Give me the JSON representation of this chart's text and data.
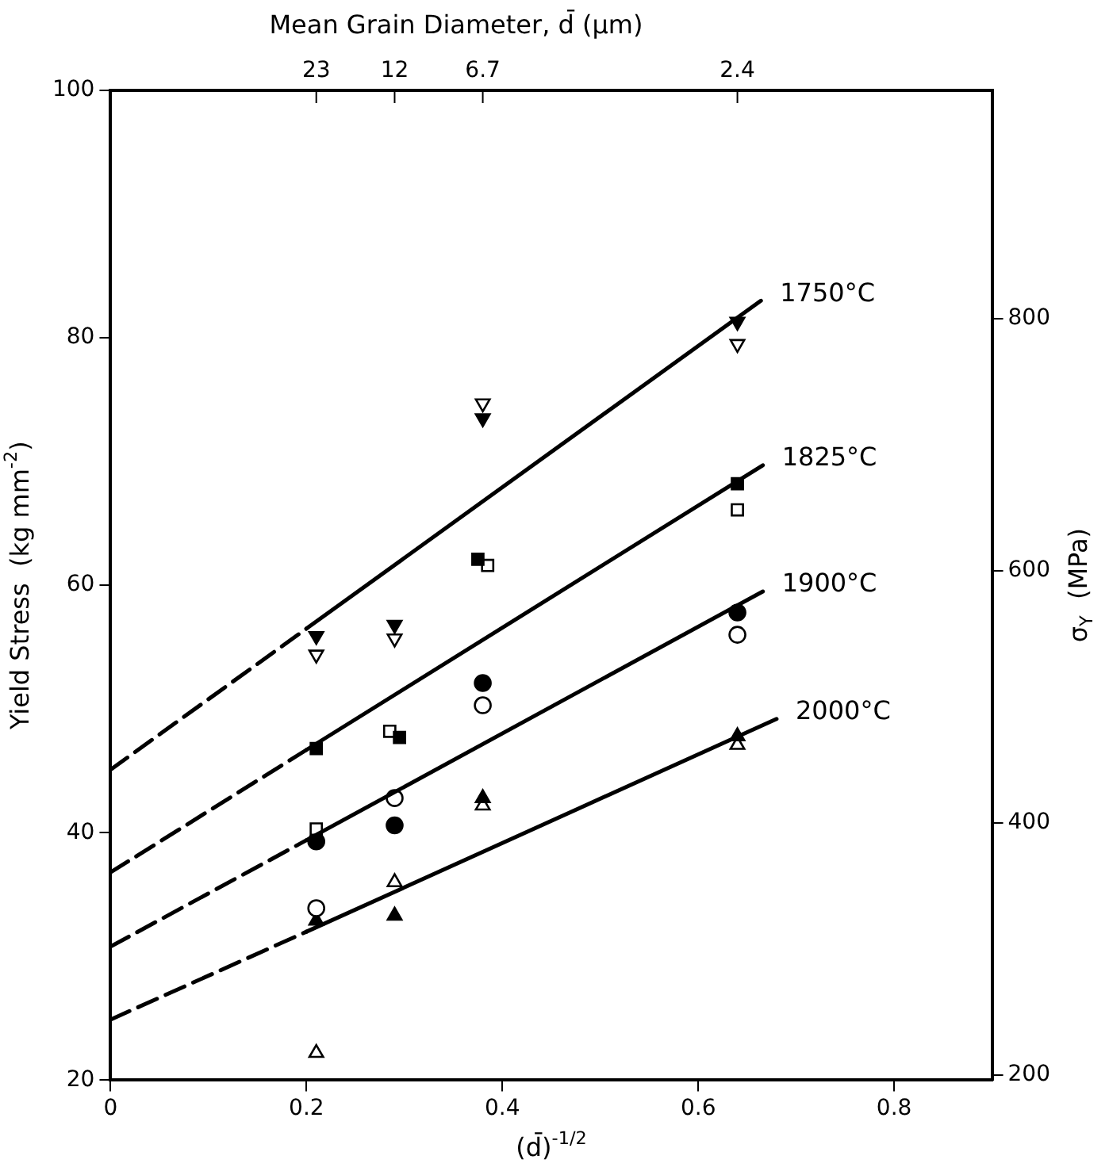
{
  "chart_data": {
    "type": "scatter",
    "xlabel": "(d̄)$^{-1/2}$",
    "ylabel": "Yield Stress  (kg mm$^{-2}$)",
    "y2label": "σ$_{Y}$  (MPa)",
    "x2label": "Mean Grain Diameter, d̄ (μm)",
    "xlim": [
      0,
      0.9
    ],
    "xticks": [
      0,
      0.2,
      0.4,
      0.6,
      0.8
    ],
    "ylim": [
      20,
      100
    ],
    "yticks": [
      20,
      40,
      60,
      80,
      100
    ],
    "y2lim": [
      196,
      981
    ],
    "y2ticks": [
      200,
      400,
      600,
      800
    ],
    "annotations": [
      {
        "text": "23",
        "x": 0.21
      },
      {
        "text": "12",
        "x": 0.29
      },
      {
        "text": "6.7",
        "x": 0.38
      },
      {
        "text": "2.4",
        "x": 0.64
      }
    ],
    "grid": false,
    "legend": false,
    "series": [
      {
        "type": "line",
        "name": "1750°C",
        "color": "#000000",
        "line_style": "solid",
        "marker": "none",
        "x": [
          0.2,
          0.664
        ],
        "values": [
          56.5,
          83.0
        ]
      },
      {
        "type": "line",
        "color": "#000000",
        "line_style": "dashed",
        "marker": "none",
        "x": [
          0,
          0.2
        ],
        "values": [
          45.1,
          56.5
        ]
      },
      {
        "type": "line",
        "name": "1825°C",
        "color": "#000000",
        "line_style": "solid",
        "marker": "none",
        "x": [
          0.2,
          0.666
        ],
        "values": [
          46.7,
          69.7
        ]
      },
      {
        "type": "line",
        "color": "#000000",
        "line_style": "dashed",
        "marker": "none",
        "x": [
          0,
          0.2
        ],
        "values": [
          36.8,
          46.7
        ]
      },
      {
        "type": "line",
        "name": "1900°C",
        "color": "#000000",
        "line_style": "solid",
        "marker": "none",
        "x": [
          0.2,
          0.666
        ],
        "values": [
          39.4,
          59.5
        ]
      },
      {
        "type": "line",
        "color": "#000000",
        "line_style": "dashed",
        "marker": "none",
        "x": [
          0,
          0.2
        ],
        "values": [
          30.8,
          39.4
        ]
      },
      {
        "type": "line",
        "name": "2000°C",
        "color": "#000000",
        "line_style": "solid",
        "marker": "none",
        "x": [
          0.2,
          0.68
        ],
        "values": [
          32.0,
          49.2
        ]
      },
      {
        "type": "line",
        "color": "#000000",
        "line_style": "dashed",
        "marker": "none",
        "x": [
          0,
          0.2
        ],
        "values": [
          24.9,
          32.0
        ]
      },
      {
        "type": "scatter",
        "marker": "triangle-down",
        "color": "#000000",
        "x": [
          0.21,
          0.29,
          0.38,
          0.64
        ],
        "values": [
          55.9,
          56.8,
          73.5,
          81.3
        ]
      },
      {
        "type": "scatter",
        "marker": "triangle-down",
        "color": "#ffffff",
        "x": [
          0.21,
          0.29,
          0.38,
          0.64
        ],
        "values": [
          54.4,
          55.7,
          74.7,
          79.5
        ]
      },
      {
        "type": "scatter",
        "marker": "square",
        "color": "#000000",
        "x": [
          0.21,
          0.295,
          0.375,
          0.64
        ],
        "values": [
          46.8,
          47.7,
          62.1,
          68.2
        ]
      },
      {
        "type": "scatter",
        "marker": "square",
        "color": "#ffffff",
        "x": [
          0.21,
          0.285,
          0.385,
          0.64
        ],
        "values": [
          40.3,
          48.2,
          61.6,
          66.1
        ]
      },
      {
        "type": "scatter",
        "marker": "circle",
        "color": "#000000",
        "x": [
          0.21,
          0.29,
          0.38,
          0.64
        ],
        "values": [
          39.3,
          40.6,
          52.1,
          57.8
        ]
      },
      {
        "type": "scatter",
        "marker": "circle",
        "color": "#ffffff",
        "x": [
          0.21,
          0.29,
          0.38,
          0.64
        ],
        "values": [
          33.9,
          42.8,
          50.3,
          56.0
        ]
      },
      {
        "type": "scatter",
        "marker": "triangle",
        "color": "#000000",
        "x": [
          0.21,
          0.29,
          0.38,
          0.64
        ],
        "values": [
          32.9,
          33.3,
          42.8,
          47.8
        ]
      },
      {
        "type": "scatter",
        "marker": "triangle",
        "color": "#ffffff",
        "x": [
          0.21,
          0.29,
          0.38,
          0.64
        ],
        "values": [
          22.2,
          36.0,
          42.2,
          47.1
        ]
      }
    ]
  }
}
